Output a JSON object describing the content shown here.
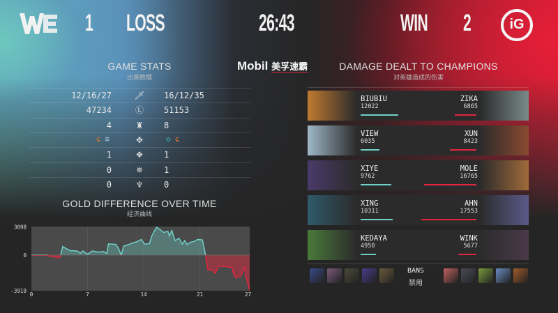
{
  "header": {
    "left_team": "WE",
    "left_score": "1",
    "left_result": "LOSS",
    "game_time": "26:43",
    "right_result": "WIN",
    "right_score": "2",
    "right_team": "IG"
  },
  "colors": {
    "blue": "#6fd0c8",
    "red": "#e3253f"
  },
  "sponsor": {
    "brand": "Mobil",
    "tagline": "美孚速霸"
  },
  "game_stats": {
    "title": "GAME STATS",
    "subtitle": "比赛数据",
    "rows": [
      {
        "icon": "sword-icon",
        "left": "12/16/27",
        "right": "16/12/35"
      },
      {
        "icon": "gold-icon",
        "left": "47234",
        "right": "51153"
      },
      {
        "icon": "tower-icon",
        "left": "4",
        "right": "8"
      },
      {
        "icon": "dragon-icon",
        "left_icons": [
          "infernal-drake-icon",
          "cloud-drake-icon"
        ],
        "right_icons": [
          "hextech-drake-icon",
          "infernal-drake-icon"
        ]
      },
      {
        "icon": "rift-herald-icon",
        "left": "1",
        "right": "1"
      },
      {
        "icon": "baron-icon",
        "left": "0",
        "right": "1"
      },
      {
        "icon": "elder-dragon-icon",
        "left": "0",
        "right": "0"
      }
    ]
  },
  "damage": {
    "title": "DAMAGE DEALT TO CHAMPIONS",
    "subtitle": "对英雄造成的伤害",
    "rows": [
      {
        "left": {
          "player": "BIUBIU",
          "damage": 12022
        },
        "right": {
          "player": "ZIKA",
          "damage": 6865
        }
      },
      {
        "left": {
          "player": "VIEW",
          "damage": 6035
        },
        "right": {
          "player": "XUN",
          "damage": 8423
        }
      },
      {
        "left": {
          "player": "XIYE",
          "damage": 9762
        },
        "right": {
          "player": "MOLE",
          "damage": 16765
        }
      },
      {
        "left": {
          "player": "XING",
          "damage": 10311
        },
        "right": {
          "player": "AHN",
          "damage": 17553
        }
      },
      {
        "left": {
          "player": "KEDAYA",
          "damage": 4950
        },
        "right": {
          "player": "WINK",
          "damage": 5677
        }
      }
    ]
  },
  "bans": {
    "label": "BANS",
    "sublabel": "禁用"
  },
  "chart_data": {
    "type": "area",
    "title": "GOLD DIFFERENCE OVER TIME",
    "subtitle": "经济曲线",
    "xticks": [
      0,
      7,
      14,
      21,
      27
    ],
    "yticks": [
      3098,
      0,
      -3919
    ],
    "xlim": [
      0,
      27.2
    ],
    "ylim": [
      -3919,
      3150
    ],
    "positive_color": "#6fd0c8",
    "negative_color": "#e3253f",
    "x": [
      0,
      1.9,
      2.3,
      3.0,
      3.2,
      3.6,
      3.9,
      4.4,
      4.8,
      5.7,
      6.1,
      6.4,
      7.0,
      7.6,
      8.3,
      9.0,
      9.4,
      9.6,
      10.5,
      10.8,
      11.2,
      11.5,
      12.1,
      12.6,
      13.1,
      13.7,
      14.1,
      14.7,
      15.0,
      15.6,
      16.1,
      16.5,
      17.0,
      17.2,
      17.5,
      17.9,
      18.4,
      18.8,
      19.1,
      19.4,
      19.8,
      20.3,
      20.7,
      21.3,
      21.7,
      22.0,
      22.5,
      22.9,
      23.3,
      23.9,
      25.0,
      25.2,
      25.5,
      26.1,
      26.6,
      26.7,
      27.05,
      27.2
    ],
    "y": [
      0,
      0,
      -120,
      -200,
      -280,
      -200,
      950,
      700,
      500,
      460,
      210,
      460,
      100,
      460,
      340,
      390,
      180,
      1240,
      1190,
      830,
      0,
      1000,
      1160,
      1340,
      1470,
      1730,
      1210,
      1260,
      2120,
      3098,
      2760,
      2500,
      2630,
      2115,
      2710,
      1600,
      1860,
      1210,
      1600,
      1160,
      1420,
      1520,
      1730,
      1680,
      0,
      -1614,
      -1614,
      -1998,
      -1230,
      -1230,
      -1358,
      -2126,
      -2510,
      -2254,
      -1358,
      -2254,
      -3407,
      -3919
    ]
  }
}
